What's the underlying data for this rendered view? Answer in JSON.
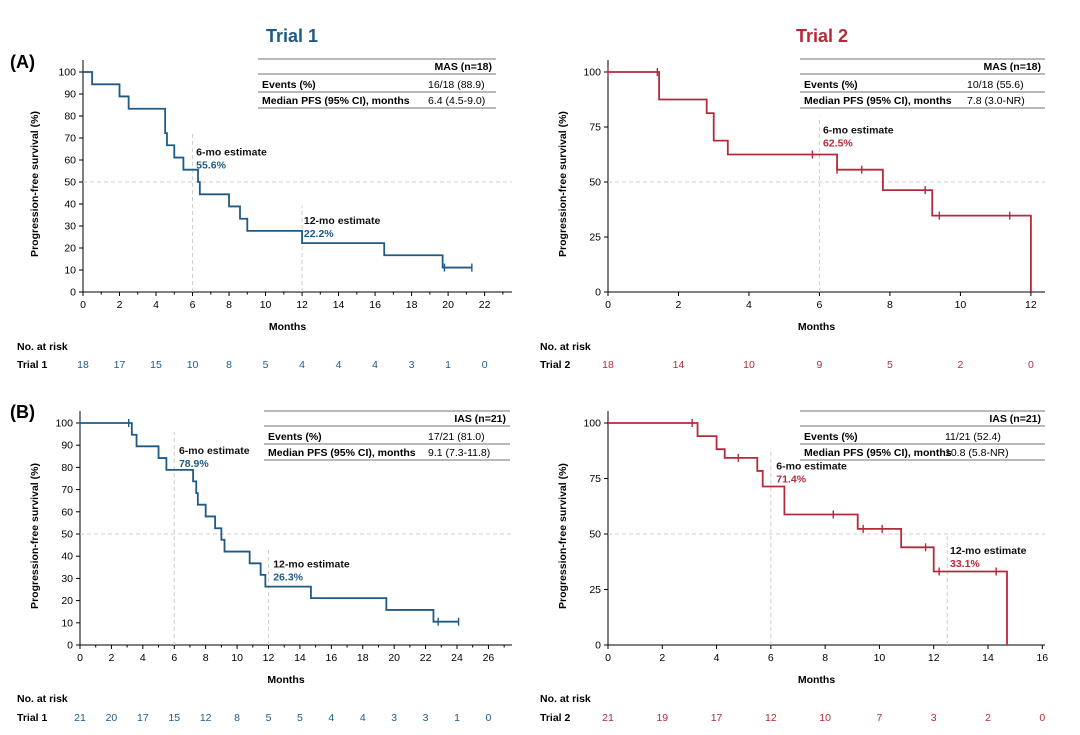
{
  "titles": {
    "trial1": "Trial 1",
    "trial2": "Trial 2"
  },
  "colors": {
    "trial1": "#1f5a85",
    "trial2": "#b52a3b"
  },
  "chart_data": [
    {
      "type": "line",
      "panel_label": "(A)",
      "trial_key": "trial1",
      "ylabel": "Progression-free survival (%)",
      "xlabel": "Months",
      "xlim": [
        0,
        23.5
      ],
      "ylim": [
        0,
        100
      ],
      "xticks": [
        0,
        2,
        4,
        6,
        8,
        10,
        12,
        14,
        16,
        18,
        20,
        22
      ],
      "yticks": [
        0,
        10,
        20,
        30,
        40,
        50,
        60,
        70,
        80,
        90,
        100
      ],
      "x_major_only": false,
      "steps": [
        [
          0,
          100
        ],
        [
          0.5,
          94.4
        ],
        [
          2,
          88.9
        ],
        [
          2.5,
          83.3
        ],
        [
          4.5,
          72.2
        ],
        [
          4.6,
          66.7
        ],
        [
          5,
          61.1
        ],
        [
          5.5,
          55.6
        ],
        [
          6.3,
          50
        ],
        [
          6.4,
          44.4
        ],
        [
          8,
          38.9
        ],
        [
          8.6,
          33.3
        ],
        [
          9,
          27.8
        ],
        [
          12,
          22.2
        ],
        [
          16.5,
          16.7
        ],
        [
          19.7,
          11.1
        ],
        [
          21.3,
          11.1
        ]
      ],
      "censors": [
        [
          19.8,
          11.1
        ],
        [
          21.3,
          11.1
        ]
      ],
      "vlines": [
        6,
        12
      ],
      "annotations": [
        {
          "label": "6-mo estimate",
          "value": "55.6%",
          "x": 6.2,
          "y": 62
        },
        {
          "label": "12-mo estimate",
          "value": "22.2%",
          "x": 12.1,
          "y": 31
        }
      ],
      "table": {
        "header": "MAS (n=18)",
        "rows": [
          [
            "Events (%)",
            "16/18 (88.9)"
          ],
          [
            "Median PFS (95% CI), months",
            "6.4 (4.5-9.0)"
          ]
        ]
      },
      "risk_label": "Trial 1",
      "risk_values": [
        "18",
        "17",
        "15",
        "10",
        "8",
        "5",
        "4",
        "4",
        "4",
        "3",
        "1",
        "0"
      ]
    },
    {
      "type": "line",
      "panel_label": "",
      "trial_key": "trial2",
      "ylabel": "Progression-free survival (%)",
      "xlabel": "Months",
      "xlim": [
        0,
        12.4
      ],
      "ylim": [
        0,
        100
      ],
      "xticks": [
        0,
        2,
        4,
        6,
        8,
        10,
        12
      ],
      "yticks": [
        0,
        25,
        50,
        75,
        100
      ],
      "x_major_only": true,
      "steps": [
        [
          0,
          100
        ],
        [
          1.4,
          100
        ],
        [
          1.45,
          87.5
        ],
        [
          2.8,
          81.3
        ],
        [
          3.0,
          68.8
        ],
        [
          3.4,
          62.5
        ],
        [
          6.5,
          55.6
        ],
        [
          7.8,
          46.3
        ],
        [
          9.2,
          34.7
        ],
        [
          12,
          34.7
        ],
        [
          12,
          0
        ]
      ],
      "censors": [
        [
          0,
          100
        ],
        [
          1.4,
          100
        ],
        [
          5.8,
          62.5
        ],
        [
          6.5,
          55.6
        ],
        [
          7.2,
          55.6
        ],
        [
          9.0,
          46.3
        ],
        [
          9.4,
          34.7
        ],
        [
          11.4,
          34.7
        ]
      ],
      "vlines": [
        6
      ],
      "annotations": [
        {
          "label": "6-mo estimate",
          "value": "62.5%",
          "x": 6.1,
          "y": 72
        }
      ],
      "table": {
        "header": "MAS (n=18)",
        "rows": [
          [
            "Events (%)",
            "10/18 (55.6)"
          ],
          [
            "Median PFS (95% CI), months",
            "7.8 (3.0-NR)"
          ]
        ]
      },
      "risk_label": "Trial 2",
      "risk_values": [
        "18",
        "14",
        "10",
        "9",
        "5",
        "2",
        "0"
      ]
    },
    {
      "type": "line",
      "panel_label": "(B)",
      "trial_key": "trial1",
      "ylabel": "Progression-free survival (%)",
      "xlabel": "Months",
      "xlim": [
        0,
        27.5
      ],
      "ylim": [
        0,
        100
      ],
      "xticks": [
        0,
        2,
        4,
        6,
        8,
        10,
        12,
        14,
        16,
        18,
        20,
        22,
        24,
        26
      ],
      "yticks": [
        0,
        10,
        20,
        30,
        40,
        50,
        60,
        70,
        80,
        90,
        100
      ],
      "x_major_only": false,
      "steps": [
        [
          0,
          100
        ],
        [
          3.2,
          100
        ],
        [
          3.3,
          94.7
        ],
        [
          3.6,
          89.5
        ],
        [
          5,
          84.2
        ],
        [
          5.5,
          78.9
        ],
        [
          7.2,
          73.7
        ],
        [
          7.4,
          68.4
        ],
        [
          7.5,
          63.2
        ],
        [
          8,
          57.9
        ],
        [
          8.6,
          52.6
        ],
        [
          9,
          47.4
        ],
        [
          9.2,
          42.1
        ],
        [
          10.8,
          36.8
        ],
        [
          11.5,
          31.6
        ],
        [
          11.8,
          26.3
        ],
        [
          14.7,
          21.1
        ],
        [
          19.5,
          15.8
        ],
        [
          22.5,
          10.5
        ],
        [
          24.1,
          10.5
        ]
      ],
      "censors": [
        [
          0,
          100
        ],
        [
          3.1,
          100
        ],
        [
          22.8,
          10.5
        ],
        [
          24.1,
          10.5
        ]
      ],
      "vlines": [
        6,
        12
      ],
      "annotations": [
        {
          "label": "6-mo estimate",
          "value": "78.9%",
          "x": 6.3,
          "y": 86
        },
        {
          "label": "12-mo estimate",
          "value": "26.3%",
          "x": 12.3,
          "y": 35
        }
      ],
      "table": {
        "header": "IAS (n=21)",
        "rows": [
          [
            "Events (%)",
            "17/21 (81.0)"
          ],
          [
            "Median PFS (95% CI), months",
            "9.1 (7.3-11.8)"
          ]
        ]
      },
      "risk_label": "Trial 1",
      "risk_values": [
        "21",
        "20",
        "17",
        "15",
        "12",
        "8",
        "5",
        "5",
        "4",
        "4",
        "3",
        "3",
        "1",
        "0"
      ]
    },
    {
      "type": "line",
      "panel_label": "",
      "trial_key": "trial2",
      "ylabel": "Progression-free survival (%)",
      "xlabel": "Months",
      "xlim": [
        0,
        16.1
      ],
      "ylim": [
        0,
        100
      ],
      "xticks": [
        0,
        2,
        4,
        6,
        8,
        10,
        12,
        14,
        16
      ],
      "yticks": [
        0,
        25,
        50,
        75,
        100
      ],
      "x_major_only": true,
      "steps": [
        [
          0,
          100
        ],
        [
          3.2,
          100
        ],
        [
          3.3,
          94.1
        ],
        [
          4.0,
          88.2
        ],
        [
          4.3,
          84.3
        ],
        [
          5.5,
          78.4
        ],
        [
          5.7,
          71.4
        ],
        [
          6.5,
          58.8
        ],
        [
          9.2,
          52.3
        ],
        [
          10.8,
          44.0
        ],
        [
          12,
          33.1
        ],
        [
          14.7,
          33.1
        ],
        [
          14.7,
          0
        ]
      ],
      "censors": [
        [
          3.1,
          100
        ],
        [
          4.8,
          84.3
        ],
        [
          8.3,
          58.8
        ],
        [
          9.4,
          52.3
        ],
        [
          10.1,
          52.3
        ],
        [
          11.7,
          44.0
        ],
        [
          12.2,
          33.1
        ],
        [
          14.3,
          33.1
        ]
      ],
      "vlines": [
        6,
        12.5
      ],
      "annotations": [
        {
          "label": "6-mo estimate",
          "value": "71.4%",
          "x": 6.2,
          "y": 79
        },
        {
          "label": "12-mo estimate",
          "value": "33.1%",
          "x": 12.6,
          "y": 41
        }
      ],
      "table": {
        "header": "IAS (n=21)",
        "rows": [
          [
            "Events (%)",
            "11/21 (52.4)"
          ],
          [
            "Median PFS (95% CI), months",
            "10.8 (5.8-NR)"
          ]
        ]
      },
      "risk_label": "Trial 2",
      "risk_values": [
        "21",
        "19",
        "17",
        "12",
        "10",
        "7",
        "3",
        "2",
        "0"
      ]
    }
  ],
  "risk_heading": "No. at risk"
}
